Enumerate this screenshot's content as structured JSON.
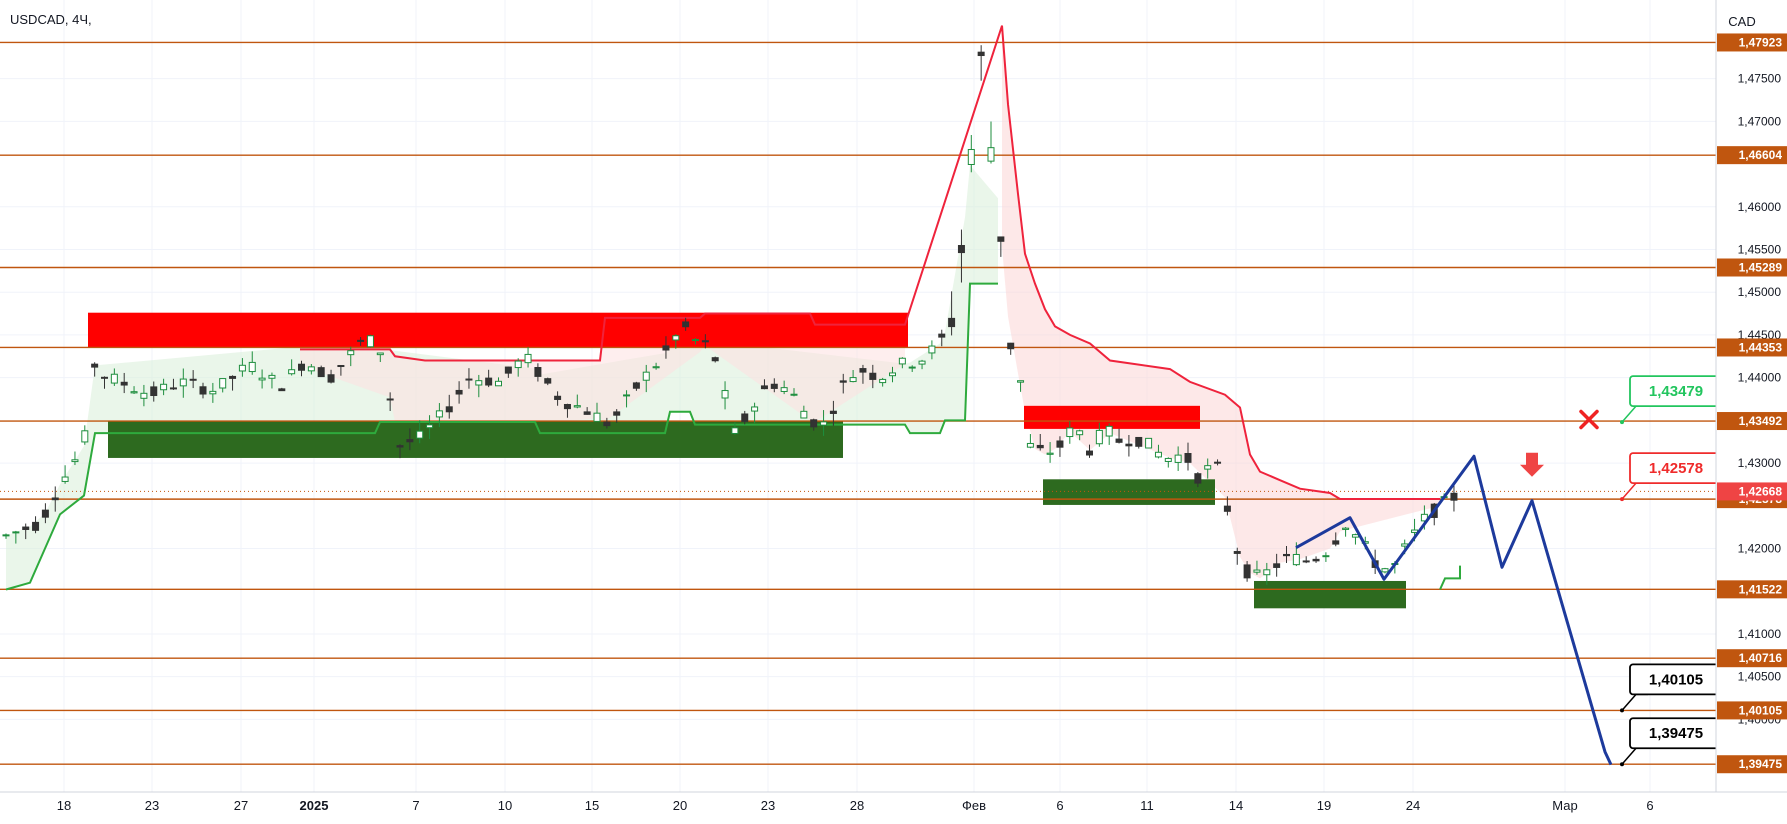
{
  "symbol_label": "USDCAD, 4Ч,",
  "currency": "CAD",
  "chart_data": {
    "type": "candlestick",
    "y_range": [
      1.3915,
      1.4842
    ],
    "price_ticks": [
      "1,47500",
      "1,47000",
      "1,46000",
      "1,45500",
      "1,45000",
      "1,44500",
      "1,44000",
      "1,43000",
      "1,42000",
      "1,41000",
      "1,40500",
      "1,40000"
    ],
    "price_tick_values": [
      1.475,
      1.47,
      1.46,
      1.455,
      1.45,
      1.445,
      1.44,
      1.43,
      1.42,
      1.41,
      1.405,
      1.4
    ],
    "levels": [
      {
        "label": "1,47923",
        "value": 1.47923
      },
      {
        "label": "1,46604",
        "value": 1.46604
      },
      {
        "label": "1,45289",
        "value": 1.45289
      },
      {
        "label": "1,44353",
        "value": 1.44353
      },
      {
        "label": "1,43492",
        "value": 1.43492
      },
      {
        "label": "1,42578",
        "value": 1.42578
      },
      {
        "label": "1,41522",
        "value": 1.41522
      },
      {
        "label": "1,40716",
        "value": 1.40716
      },
      {
        "label": "1,40105",
        "value": 1.40105
      },
      {
        "label": "1,39475",
        "value": 1.39475
      }
    ],
    "current_price": {
      "label": "1,42668",
      "value": 1.42668
    },
    "annotations": [
      {
        "label": "1,43479",
        "value": 1.43479,
        "color": "#22c55e"
      },
      {
        "label": "1,42578",
        "value": 1.42578,
        "color": "#ef2b2b"
      },
      {
        "label": "1,40105",
        "value": 1.40105,
        "color": "#000000"
      },
      {
        "label": "1,39475",
        "value": 1.39475,
        "color": "#000000"
      }
    ],
    "x_ticks": [
      "18",
      "23",
      "27",
      "2025",
      "7",
      "10",
      "15",
      "20",
      "23",
      "28",
      "Фев",
      "6",
      "11",
      "14",
      "19",
      "24",
      "Мар",
      "6"
    ],
    "zones": [
      {
        "type": "resistance",
        "top": 1.4476,
        "bottom": 1.4435
      },
      {
        "type": "support",
        "top": 1.4349,
        "bottom": 1.4306
      },
      {
        "type": "resistance",
        "top": 1.4367,
        "bottom": 1.434
      },
      {
        "type": "support",
        "top": 1.4281,
        "bottom": 1.4251
      },
      {
        "type": "support",
        "top": 1.4162,
        "bottom": 1.413
      }
    ],
    "projection_path": [
      1.4201,
      1.4236,
      1.4164,
      1.4308,
      1.4178,
      1.4256,
      1.3962,
      1.3947
    ],
    "colors": {
      "up": "#089981",
      "down": "#333333",
      "level": "#c0560f",
      "projection": "#1d3a9c",
      "resistance_zone": "#ff0000",
      "support_zone": "#2d6a1f"
    }
  }
}
